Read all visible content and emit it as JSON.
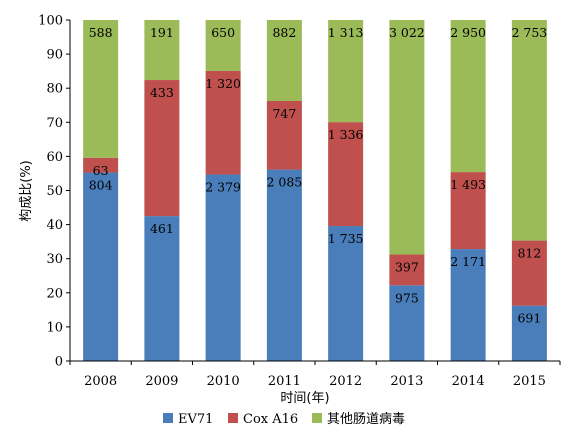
{
  "chart_data": {
    "type": "bar",
    "stacked": true,
    "normalized": true,
    "xlabel": "时间(年)",
    "ylabel": "构成比(%)",
    "ylim": [
      0,
      100
    ],
    "yticks": [
      0,
      10,
      20,
      30,
      40,
      50,
      60,
      70,
      80,
      90,
      100
    ],
    "grid": false,
    "legend_position": "bottom",
    "categories": [
      "2008",
      "2009",
      "2010",
      "2011",
      "2012",
      "2013",
      "2014",
      "2015"
    ],
    "series": [
      {
        "name": "EV71",
        "color": "#4a7ebb",
        "values": [
          804,
          461,
          2379,
          2085,
          1735,
          975,
          2171,
          691
        ],
        "labels": [
          "804",
          "461",
          "2 379",
          "2 085",
          "1 735",
          "975",
          "2 171",
          "691"
        ]
      },
      {
        "name": "Cox A16",
        "color": "#c0504d",
        "values": [
          63,
          433,
          1320,
          747,
          1336,
          397,
          1493,
          812
        ],
        "labels": [
          "63",
          "433",
          "1 320",
          "747",
          "1 336",
          "397",
          "1 493",
          "812"
        ]
      },
      {
        "name": "其他肠道病毒",
        "color": "#9bbb59",
        "values": [
          588,
          191,
          650,
          882,
          1313,
          3022,
          2950,
          2753
        ],
        "labels": [
          "588",
          "191",
          "650",
          "882",
          "1 313",
          "3 022",
          "2 950",
          "2 753"
        ]
      }
    ]
  }
}
